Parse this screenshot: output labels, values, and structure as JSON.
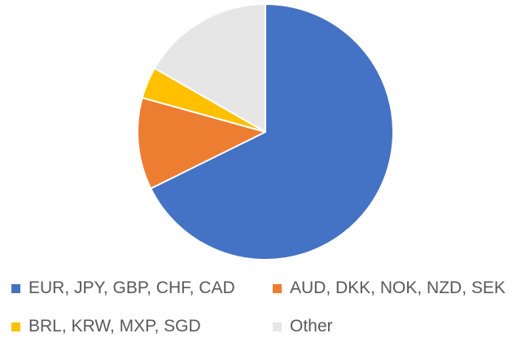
{
  "chart_data": {
    "type": "pie",
    "title": "",
    "start_angle_deg": 0,
    "direction": "clockwise",
    "legend_position": "bottom",
    "series": [
      {
        "name": "",
        "categories": [
          "EUR, JPY, GBP, CHF, CAD",
          "AUD, DKK, NOK, NZD, SEK",
          "BRL, KRW, MXP, SGD",
          "Other"
        ],
        "values": [
          67.7,
          11.6,
          4.0,
          16.7
        ],
        "colors": [
          "#4472C4",
          "#ED7D31",
          "#FFC000",
          "#E7E6E6"
        ]
      }
    ]
  }
}
